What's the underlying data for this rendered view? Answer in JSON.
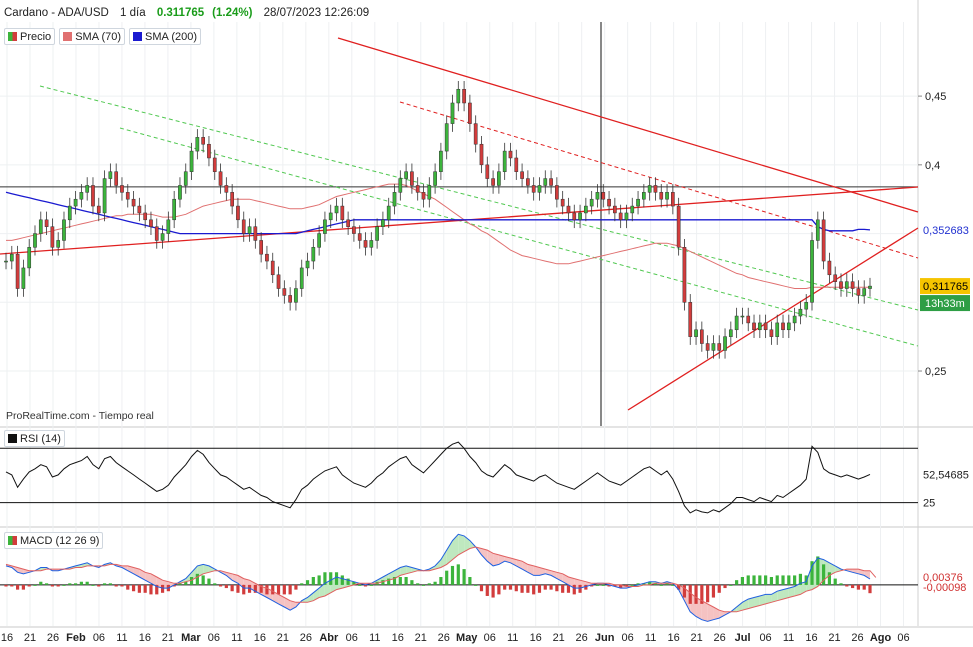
{
  "header": {
    "instrument": "Cardano - ADA/USD",
    "timeframe": "1 día",
    "price": "0.311765",
    "change": "(1.24%)",
    "datetime": "28/07/2023 12:26:09"
  },
  "legend": [
    {
      "label": "Precio",
      "color": "#3cb43c"
    },
    {
      "label": "SMA (70)",
      "color": "#e07070"
    },
    {
      "label": "SMA (200)",
      "color": "#1a1ad0"
    }
  ],
  "source_note": "ProRealTime.com   - Tiempo real",
  "price_panel": {
    "y_ticks": [
      "0,45",
      "0,4",
      "0,25"
    ],
    "sma200_label": "0,352683",
    "price_label": "0,311765",
    "timer_label": "13h33m"
  },
  "rsi_panel": {
    "title": "RSI (14)",
    "value_label": "52,54685",
    "level_label": "25"
  },
  "macd_panel": {
    "title": "MACD (12 26 9)",
    "value_label_1": "0,00376",
    "value_label_2": "-0,00098"
  },
  "x_axis": {
    "labels": [
      "16",
      "21",
      "26",
      "Feb",
      "06",
      "11",
      "16",
      "21",
      "Mar",
      "06",
      "11",
      "16",
      "21",
      "26",
      "Abr",
      "06",
      "11",
      "16",
      "21",
      "26",
      "May",
      "06",
      "11",
      "16",
      "21",
      "26",
      "Jun",
      "06",
      "11",
      "16",
      "21",
      "26",
      "Jul",
      "06",
      "11",
      "16",
      "21",
      "26",
      "Ago",
      "06"
    ]
  },
  "colors": {
    "up": "#3cb43c",
    "down": "#d23c3c",
    "sma70": "#e07070",
    "sma200": "#1a1ad0",
    "trendline": "#e02020",
    "channel": "#50c850",
    "label_yellow": "#f5c400",
    "label_green": "#2e9e45",
    "label_blue": "#2030d0"
  },
  "chart_data": {
    "type": "candlestick",
    "title": "Cardano - ADA/USD",
    "x_range": [
      "2023-01-16",
      "2023-08-06"
    ],
    "ylim": [
      0.21,
      0.485
    ],
    "reference_lines": {
      "horizontal_price": 0.384,
      "rsi_upper": 78,
      "rsi_lower": 25,
      "macd_zero": 0
    },
    "close": [
      0.33,
      0.335,
      0.31,
      0.325,
      0.34,
      0.35,
      0.36,
      0.355,
      0.34,
      0.345,
      0.36,
      0.37,
      0.375,
      0.38,
      0.385,
      0.37,
      0.365,
      0.39,
      0.395,
      0.385,
      0.38,
      0.375,
      0.37,
      0.365,
      0.36,
      0.355,
      0.345,
      0.35,
      0.36,
      0.375,
      0.385,
      0.395,
      0.41,
      0.42,
      0.415,
      0.405,
      0.395,
      0.385,
      0.38,
      0.37,
      0.36,
      0.35,
      0.355,
      0.345,
      0.335,
      0.33,
      0.32,
      0.31,
      0.305,
      0.3,
      0.31,
      0.325,
      0.33,
      0.34,
      0.35,
      0.36,
      0.365,
      0.37,
      0.36,
      0.355,
      0.35,
      0.345,
      0.34,
      0.345,
      0.355,
      0.36,
      0.37,
      0.38,
      0.39,
      0.395,
      0.385,
      0.38,
      0.375,
      0.385,
      0.395,
      0.41,
      0.43,
      0.445,
      0.455,
      0.445,
      0.43,
      0.415,
      0.4,
      0.39,
      0.385,
      0.395,
      0.41,
      0.405,
      0.395,
      0.39,
      0.385,
      0.38,
      0.385,
      0.39,
      0.385,
      0.375,
      0.37,
      0.365,
      0.36,
      0.365,
      0.37,
      0.375,
      0.38,
      0.375,
      0.37,
      0.365,
      0.36,
      0.365,
      0.37,
      0.375,
      0.38,
      0.385,
      0.38,
      0.375,
      0.38,
      0.37,
      0.34,
      0.3,
      0.275,
      0.28,
      0.27,
      0.265,
      0.27,
      0.265,
      0.275,
      0.28,
      0.29,
      0.29,
      0.285,
      0.28,
      0.285,
      0.28,
      0.275,
      0.285,
      0.28,
      0.285,
      0.29,
      0.295,
      0.3,
      0.345,
      0.36,
      0.33,
      0.32,
      0.315,
      0.31,
      0.315,
      0.31,
      0.305,
      0.31,
      0.311765
    ],
    "sma70": [
      0.345,
      0.345,
      0.346,
      0.347,
      0.348,
      0.349,
      0.35,
      0.351,
      0.352,
      0.353,
      0.354,
      0.355,
      0.356,
      0.357,
      0.358,
      0.359,
      0.36,
      0.361,
      0.362,
      0.363,
      0.363,
      0.364,
      0.364,
      0.364,
      0.364,
      0.364,
      0.363,
      0.362,
      0.362,
      0.362,
      0.363,
      0.364,
      0.366,
      0.368,
      0.37,
      0.371,
      0.372,
      0.373,
      0.374,
      0.375,
      0.375,
      0.375,
      0.375,
      0.374,
      0.373,
      0.372,
      0.371,
      0.37,
      0.369,
      0.368,
      0.368,
      0.368,
      0.369,
      0.37,
      0.371,
      0.373,
      0.375,
      0.377,
      0.378,
      0.379,
      0.38,
      0.381,
      0.382,
      0.383,
      0.384,
      0.385,
      0.386,
      0.386,
      0.386,
      0.385,
      0.383,
      0.381,
      0.379,
      0.377,
      0.375,
      0.372,
      0.369,
      0.366,
      0.363,
      0.36,
      0.357,
      0.355,
      0.352,
      0.35,
      0.347,
      0.344,
      0.341,
      0.338,
      0.336,
      0.334,
      0.333,
      0.332,
      0.331,
      0.33,
      0.329,
      0.328,
      0.328,
      0.328,
      0.329,
      0.33,
      0.331,
      0.332,
      0.333,
      0.334,
      0.335,
      0.336,
      0.337,
      0.338,
      0.339,
      0.34,
      0.341,
      0.342,
      0.343,
      0.343,
      0.343,
      0.342,
      0.341,
      0.339,
      0.337,
      0.335,
      0.333,
      0.331,
      0.329,
      0.327,
      0.325,
      0.323,
      0.321,
      0.32,
      0.318,
      0.317,
      0.316,
      0.315,
      0.314,
      0.313,
      0.312,
      0.311,
      0.31,
      0.31,
      0.31,
      0.311,
      0.311,
      0.311,
      0.311,
      0.311,
      0.311,
      0.311,
      0.311,
      0.311,
      0.311,
      0.311
    ],
    "sma200": [
      0.38,
      0.379,
      0.378,
      0.377,
      0.376,
      0.375,
      0.374,
      0.373,
      0.372,
      0.371,
      0.37,
      0.369,
      0.368,
      0.367,
      0.366,
      0.365,
      0.364,
      0.363,
      0.362,
      0.361,
      0.36,
      0.359,
      0.358,
      0.357,
      0.356,
      0.355,
      0.354,
      0.353,
      0.352,
      0.351,
      0.35,
      0.35,
      0.35,
      0.35,
      0.35,
      0.35,
      0.35,
      0.35,
      0.35,
      0.35,
      0.35,
      0.35,
      0.35,
      0.35,
      0.35,
      0.35,
      0.35,
      0.35,
      0.35,
      0.35,
      0.35,
      0.351,
      0.352,
      0.353,
      0.354,
      0.355,
      0.356,
      0.357,
      0.358,
      0.359,
      0.36,
      0.36,
      0.36,
      0.36,
      0.36,
      0.36,
      0.36,
      0.36,
      0.36,
      0.36,
      0.36,
      0.36,
      0.36,
      0.36,
      0.36,
      0.36,
      0.36,
      0.36,
      0.36,
      0.36,
      0.36,
      0.36,
      0.36,
      0.36,
      0.36,
      0.36,
      0.36,
      0.36,
      0.36,
      0.36,
      0.36,
      0.36,
      0.36,
      0.36,
      0.36,
      0.36,
      0.36,
      0.36,
      0.36,
      0.36,
      0.36,
      0.36,
      0.36,
      0.36,
      0.36,
      0.36,
      0.36,
      0.36,
      0.36,
      0.36,
      0.36,
      0.36,
      0.36,
      0.36,
      0.36,
      0.36,
      0.36,
      0.36,
      0.36,
      0.36,
      0.36,
      0.36,
      0.36,
      0.36,
      0.36,
      0.36,
      0.36,
      0.36,
      0.36,
      0.36,
      0.36,
      0.36,
      0.36,
      0.36,
      0.36,
      0.36,
      0.36,
      0.36,
      0.36,
      0.36,
      0.355,
      0.353,
      0.352,
      0.352,
      0.352,
      0.352,
      0.352,
      0.353,
      0.353,
      0.352683
    ],
    "rsi": [
      55,
      52,
      40,
      48,
      55,
      58,
      62,
      60,
      50,
      52,
      58,
      62,
      64,
      66,
      70,
      62,
      58,
      68,
      70,
      64,
      60,
      56,
      52,
      48,
      44,
      40,
      36,
      38,
      42,
      50,
      56,
      62,
      70,
      76,
      72,
      64,
      58,
      52,
      50,
      46,
      42,
      38,
      40,
      36,
      32,
      30,
      26,
      24,
      22,
      20,
      28,
      38,
      42,
      48,
      52,
      56,
      58,
      60,
      52,
      48,
      44,
      42,
      40,
      44,
      50,
      54,
      60,
      64,
      68,
      70,
      62,
      58,
      54,
      60,
      66,
      72,
      78,
      82,
      84,
      78,
      70,
      64,
      56,
      52,
      50,
      56,
      62,
      58,
      52,
      50,
      48,
      46,
      50,
      52,
      48,
      44,
      42,
      40,
      38,
      42,
      46,
      50,
      54,
      50,
      46,
      44,
      42,
      46,
      50,
      54,
      58,
      60,
      56,
      52,
      56,
      48,
      36,
      22,
      15,
      18,
      16,
      15,
      18,
      16,
      20,
      24,
      30,
      30,
      28,
      26,
      30,
      28,
      26,
      32,
      30,
      34,
      38,
      42,
      48,
      80,
      74,
      58,
      54,
      52,
      50,
      52,
      50,
      48,
      50,
      52.55
    ],
    "macd": [
      0.012,
      0.011,
      0.008,
      0.007,
      0.008,
      0.009,
      0.011,
      0.011,
      0.009,
      0.009,
      0.01,
      0.011,
      0.012,
      0.013,
      0.014,
      0.012,
      0.011,
      0.013,
      0.014,
      0.012,
      0.011,
      0.009,
      0.007,
      0.005,
      0.003,
      0.001,
      -0.001,
      -0.002,
      -0.002,
      0,
      0.002,
      0.004,
      0.008,
      0.012,
      0.013,
      0.012,
      0.01,
      0.008,
      0.006,
      0.003,
      0.001,
      -0.002,
      -0.002,
      -0.004,
      -0.006,
      -0.008,
      -0.01,
      -0.012,
      -0.014,
      -0.016,
      -0.014,
      -0.01,
      -0.008,
      -0.005,
      -0.002,
      0.001,
      0.003,
      0.005,
      0.004,
      0.003,
      0.002,
      0.001,
      0,
      0.001,
      0.003,
      0.005,
      0.007,
      0.009,
      0.011,
      0.012,
      0.011,
      0.01,
      0.009,
      0.01,
      0.012,
      0.016,
      0.022,
      0.028,
      0.032,
      0.031,
      0.028,
      0.024,
      0.019,
      0.015,
      0.012,
      0.013,
      0.015,
      0.014,
      0.012,
      0.01,
      0.008,
      0.006,
      0.006,
      0.007,
      0.006,
      0.004,
      0.002,
      0,
      -0.002,
      -0.002,
      -0.001,
      0,
      0.001,
      0.001,
      0,
      -0.001,
      -0.002,
      -0.002,
      -0.001,
      0,
      0.001,
      0.002,
      0.002,
      0.001,
      0.002,
      0.001,
      -0.003,
      -0.01,
      -0.017,
      -0.02,
      -0.022,
      -0.023,
      -0.022,
      -0.021,
      -0.019,
      -0.017,
      -0.014,
      -0.011,
      -0.009,
      -0.008,
      -0.007,
      -0.006,
      -0.006,
      -0.004,
      -0.003,
      -0.002,
      -0.001,
      0.001,
      0.002,
      0.012,
      0.017,
      0.016,
      0.014,
      0.012,
      0.01,
      0.009,
      0.008,
      0.007,
      0.006,
      0.00376
    ],
    "macd_signal": [
      0.013,
      0.012,
      0.011,
      0.01,
      0.009,
      0.009,
      0.009,
      0.01,
      0.01,
      0.01,
      0.01,
      0.01,
      0.011,
      0.011,
      0.012,
      0.012,
      0.012,
      0.012,
      0.013,
      0.013,
      0.012,
      0.012,
      0.011,
      0.01,
      0.008,
      0.007,
      0.005,
      0.003,
      0.002,
      0.001,
      0.001,
      0.002,
      0.003,
      0.005,
      0.007,
      0.008,
      0.009,
      0.009,
      0.008,
      0.007,
      0.006,
      0.004,
      0.003,
      0.001,
      -0.001,
      -0.002,
      -0.004,
      -0.006,
      -0.008,
      -0.01,
      -0.011,
      -0.011,
      -0.011,
      -0.01,
      -0.008,
      -0.007,
      -0.005,
      -0.003,
      -0.002,
      -0.001,
      0,
      0.001,
      0.001,
      0.001,
      0.001,
      0.002,
      0.003,
      0.004,
      0.006,
      0.007,
      0.008,
      0.009,
      0.009,
      0.009,
      0.01,
      0.011,
      0.013,
      0.016,
      0.019,
      0.021,
      0.023,
      0.024,
      0.023,
      0.022,
      0.02,
      0.019,
      0.018,
      0.017,
      0.016,
      0.015,
      0.013,
      0.012,
      0.011,
      0.01,
      0.009,
      0.008,
      0.007,
      0.005,
      0.004,
      0.003,
      0.002,
      0.001,
      0.001,
      0.001,
      0.001,
      0,
      0,
      -0.001,
      -0.001,
      -0.001,
      0,
      0,
      0.001,
      0.001,
      0.001,
      0.001,
      0,
      -0.002,
      -0.005,
      -0.008,
      -0.01,
      -0.012,
      -0.014,
      -0.016,
      -0.017,
      -0.017,
      -0.017,
      -0.016,
      -0.015,
      -0.014,
      -0.013,
      -0.012,
      -0.011,
      -0.01,
      -0.009,
      -0.008,
      -0.007,
      -0.006,
      -0.004,
      -0.003,
      -0.001,
      0.003,
      0.006,
      0.008,
      0.009,
      0.01,
      0.01,
      0.01,
      0.009,
      0.009,
      0.00474
    ]
  }
}
